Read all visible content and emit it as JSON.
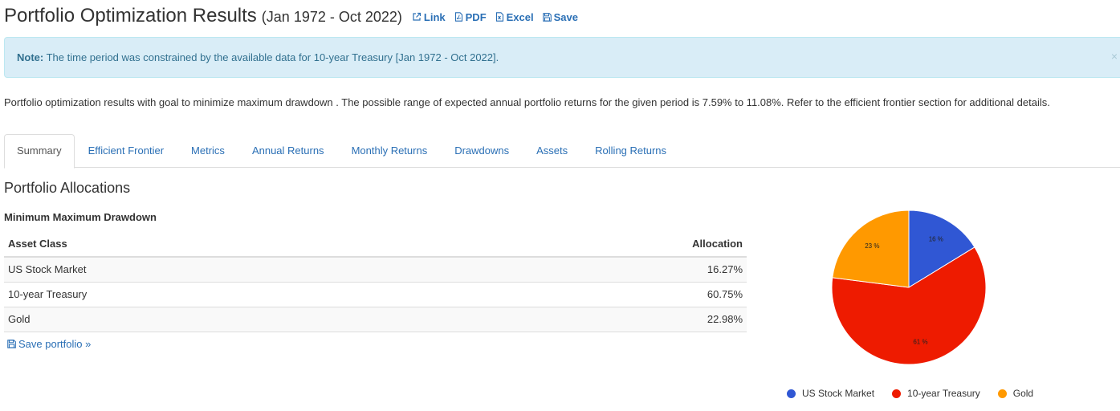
{
  "header": {
    "title": "Portfolio Optimization Results",
    "subtitle": "(Jan 1972 - Oct 2022)",
    "links": [
      {
        "label": "Link",
        "icon": "external-link-icon"
      },
      {
        "label": "PDF",
        "icon": "pdf-file-icon"
      },
      {
        "label": "Excel",
        "icon": "excel-file-icon"
      },
      {
        "label": "Save",
        "icon": "floppy-disk-icon"
      }
    ]
  },
  "alert": {
    "label": "Note:",
    "text": " The time period was constrained by the available data for 10-year Treasury [Jan 1972 - Oct 2022].",
    "close": "×"
  },
  "intro": "Portfolio optimization results with goal to minimize maximum drawdown . The possible range of expected annual portfolio returns for the given period is 7.59% to 11.08%. Refer to the efficient frontier section for additional details.",
  "tabs": [
    {
      "label": "Summary",
      "active": true
    },
    {
      "label": "Efficient Frontier"
    },
    {
      "label": "Metrics"
    },
    {
      "label": "Annual Returns"
    },
    {
      "label": "Monthly Returns"
    },
    {
      "label": "Drawdowns"
    },
    {
      "label": "Assets"
    },
    {
      "label": "Rolling Returns"
    }
  ],
  "section_title": "Portfolio Allocations",
  "table": {
    "title": "Minimum Maximum Drawdown",
    "headers": [
      "Asset Class",
      "Allocation"
    ],
    "rows": [
      {
        "asset": "US Stock Market",
        "allocation": "16.27%"
      },
      {
        "asset": "10-year Treasury",
        "allocation": "60.75%"
      },
      {
        "asset": "Gold",
        "allocation": "22.98%"
      }
    ]
  },
  "save_portfolio": "Save portfolio »",
  "chart_data": {
    "type": "pie",
    "categories": [
      "US Stock Market",
      "10-year Treasury",
      "Gold"
    ],
    "values": [
      16.27,
      60.75,
      22.98
    ],
    "data_labels": [
      "16 %",
      "61 %",
      "23 %"
    ],
    "colors": [
      "#3057d4",
      "#ee1b00",
      "#ff9900"
    ],
    "legend_position": "bottom"
  }
}
